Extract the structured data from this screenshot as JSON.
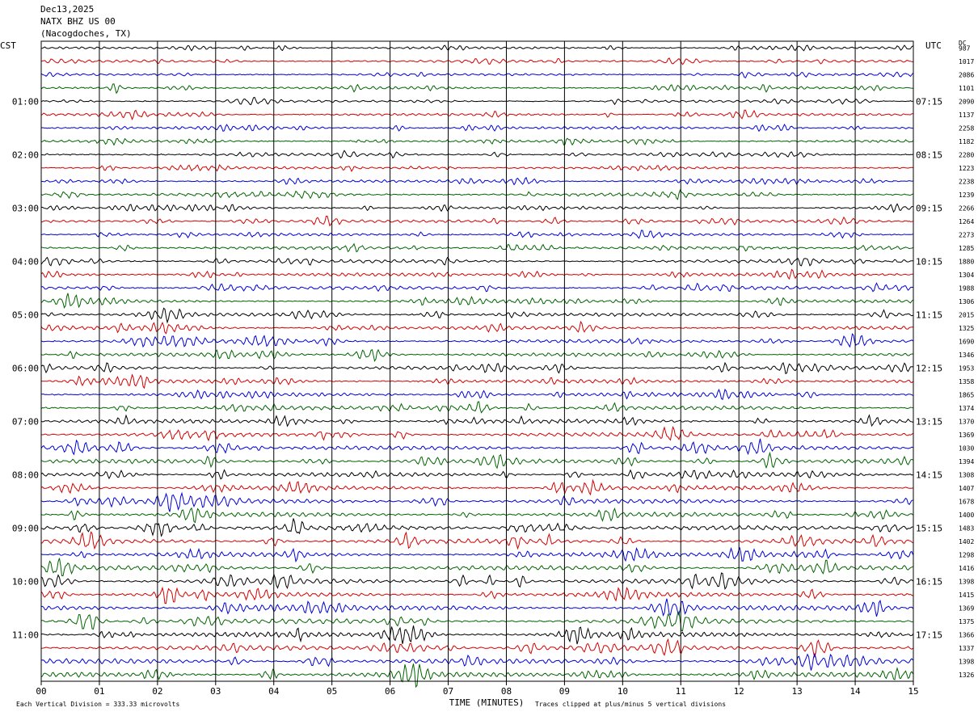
{
  "header": {
    "date": "Dec13,2025",
    "station": "NATX BHZ US 00",
    "location": "(Nacogdoches, TX)"
  },
  "tz_left": "CST",
  "tz_right": "UTC",
  "dc_label": "DC",
  "footer": {
    "scale": "Each Vertical Division =  333.33 microvolts",
    "clip_note": "Traces clipped at plus/minus 5 vertical divisions"
  },
  "colors": {
    "cycle": [
      "#000000",
      "#d40000",
      "#0000d8",
      "#006400"
    ],
    "grid": "#000000"
  },
  "chart_data": {
    "type": "line",
    "title": "Dec13,2025 NATX BHZ US 00 (Nacogdoches, TX)",
    "xlabel": "TIME (MINUTES)",
    "xlim": [
      0,
      15
    ],
    "x_ticks": [
      "00",
      "01",
      "02",
      "03",
      "04",
      "05",
      "06",
      "07",
      "08",
      "09",
      "10",
      "11",
      "12",
      "13",
      "14",
      "15"
    ],
    "grid": true,
    "trace_minutes": 15,
    "traces_per_hour": 4,
    "left_hour_labels": [
      "01:00",
      "02:00",
      "03:00",
      "04:00",
      "05:00",
      "06:00",
      "07:00",
      "08:00",
      "09:00",
      "10:00",
      "11:00"
    ],
    "right_hour_labels": [
      "07:15",
      "08:15",
      "09:15",
      "10:15",
      "11:15",
      "12:15",
      "13:15",
      "14:15",
      "15:15",
      "16:15",
      "17:15"
    ],
    "dc_values": [
      "987",
      "1017",
      "2086",
      "1101",
      "2090",
      "1137",
      "2258",
      "1182",
      "2280",
      "1223",
      "2238",
      "1239",
      "2266",
      "1264",
      "2273",
      "1285",
      "1880",
      "1304",
      "1988",
      "1306",
      "2015",
      "1325",
      "1690",
      "1346",
      "1953",
      "1358",
      "1865",
      "1374",
      "1370",
      "1369",
      "1030",
      "1394",
      "1308",
      "1407",
      "1678",
      "1400",
      "1483",
      "1402",
      "1298",
      "1416",
      "1398",
      "1415",
      "1369",
      "1375",
      "1366",
      "1337",
      "1398",
      "1326"
    ],
    "amplitudes": [
      0.5,
      0.55,
      0.5,
      0.6,
      0.5,
      0.55,
      0.6,
      0.55,
      0.6,
      0.6,
      0.6,
      0.7,
      0.65,
      0.65,
      0.6,
      0.7,
      0.75,
      0.75,
      0.8,
      0.75,
      0.8,
      0.8,
      0.85,
      0.85,
      0.85,
      0.85,
      0.9,
      0.9,
      0.95,
      0.95,
      1.0,
      1.0,
      1.0,
      1.0,
      1.05,
      1.05,
      1.05,
      1.1,
      1.1,
      1.1,
      1.15,
      1.15,
      1.15,
      1.15,
      1.2,
      1.2,
      1.2,
      1.2
    ],
    "vertical_division_microvolts": 333.33,
    "clip_divisions": 5
  }
}
